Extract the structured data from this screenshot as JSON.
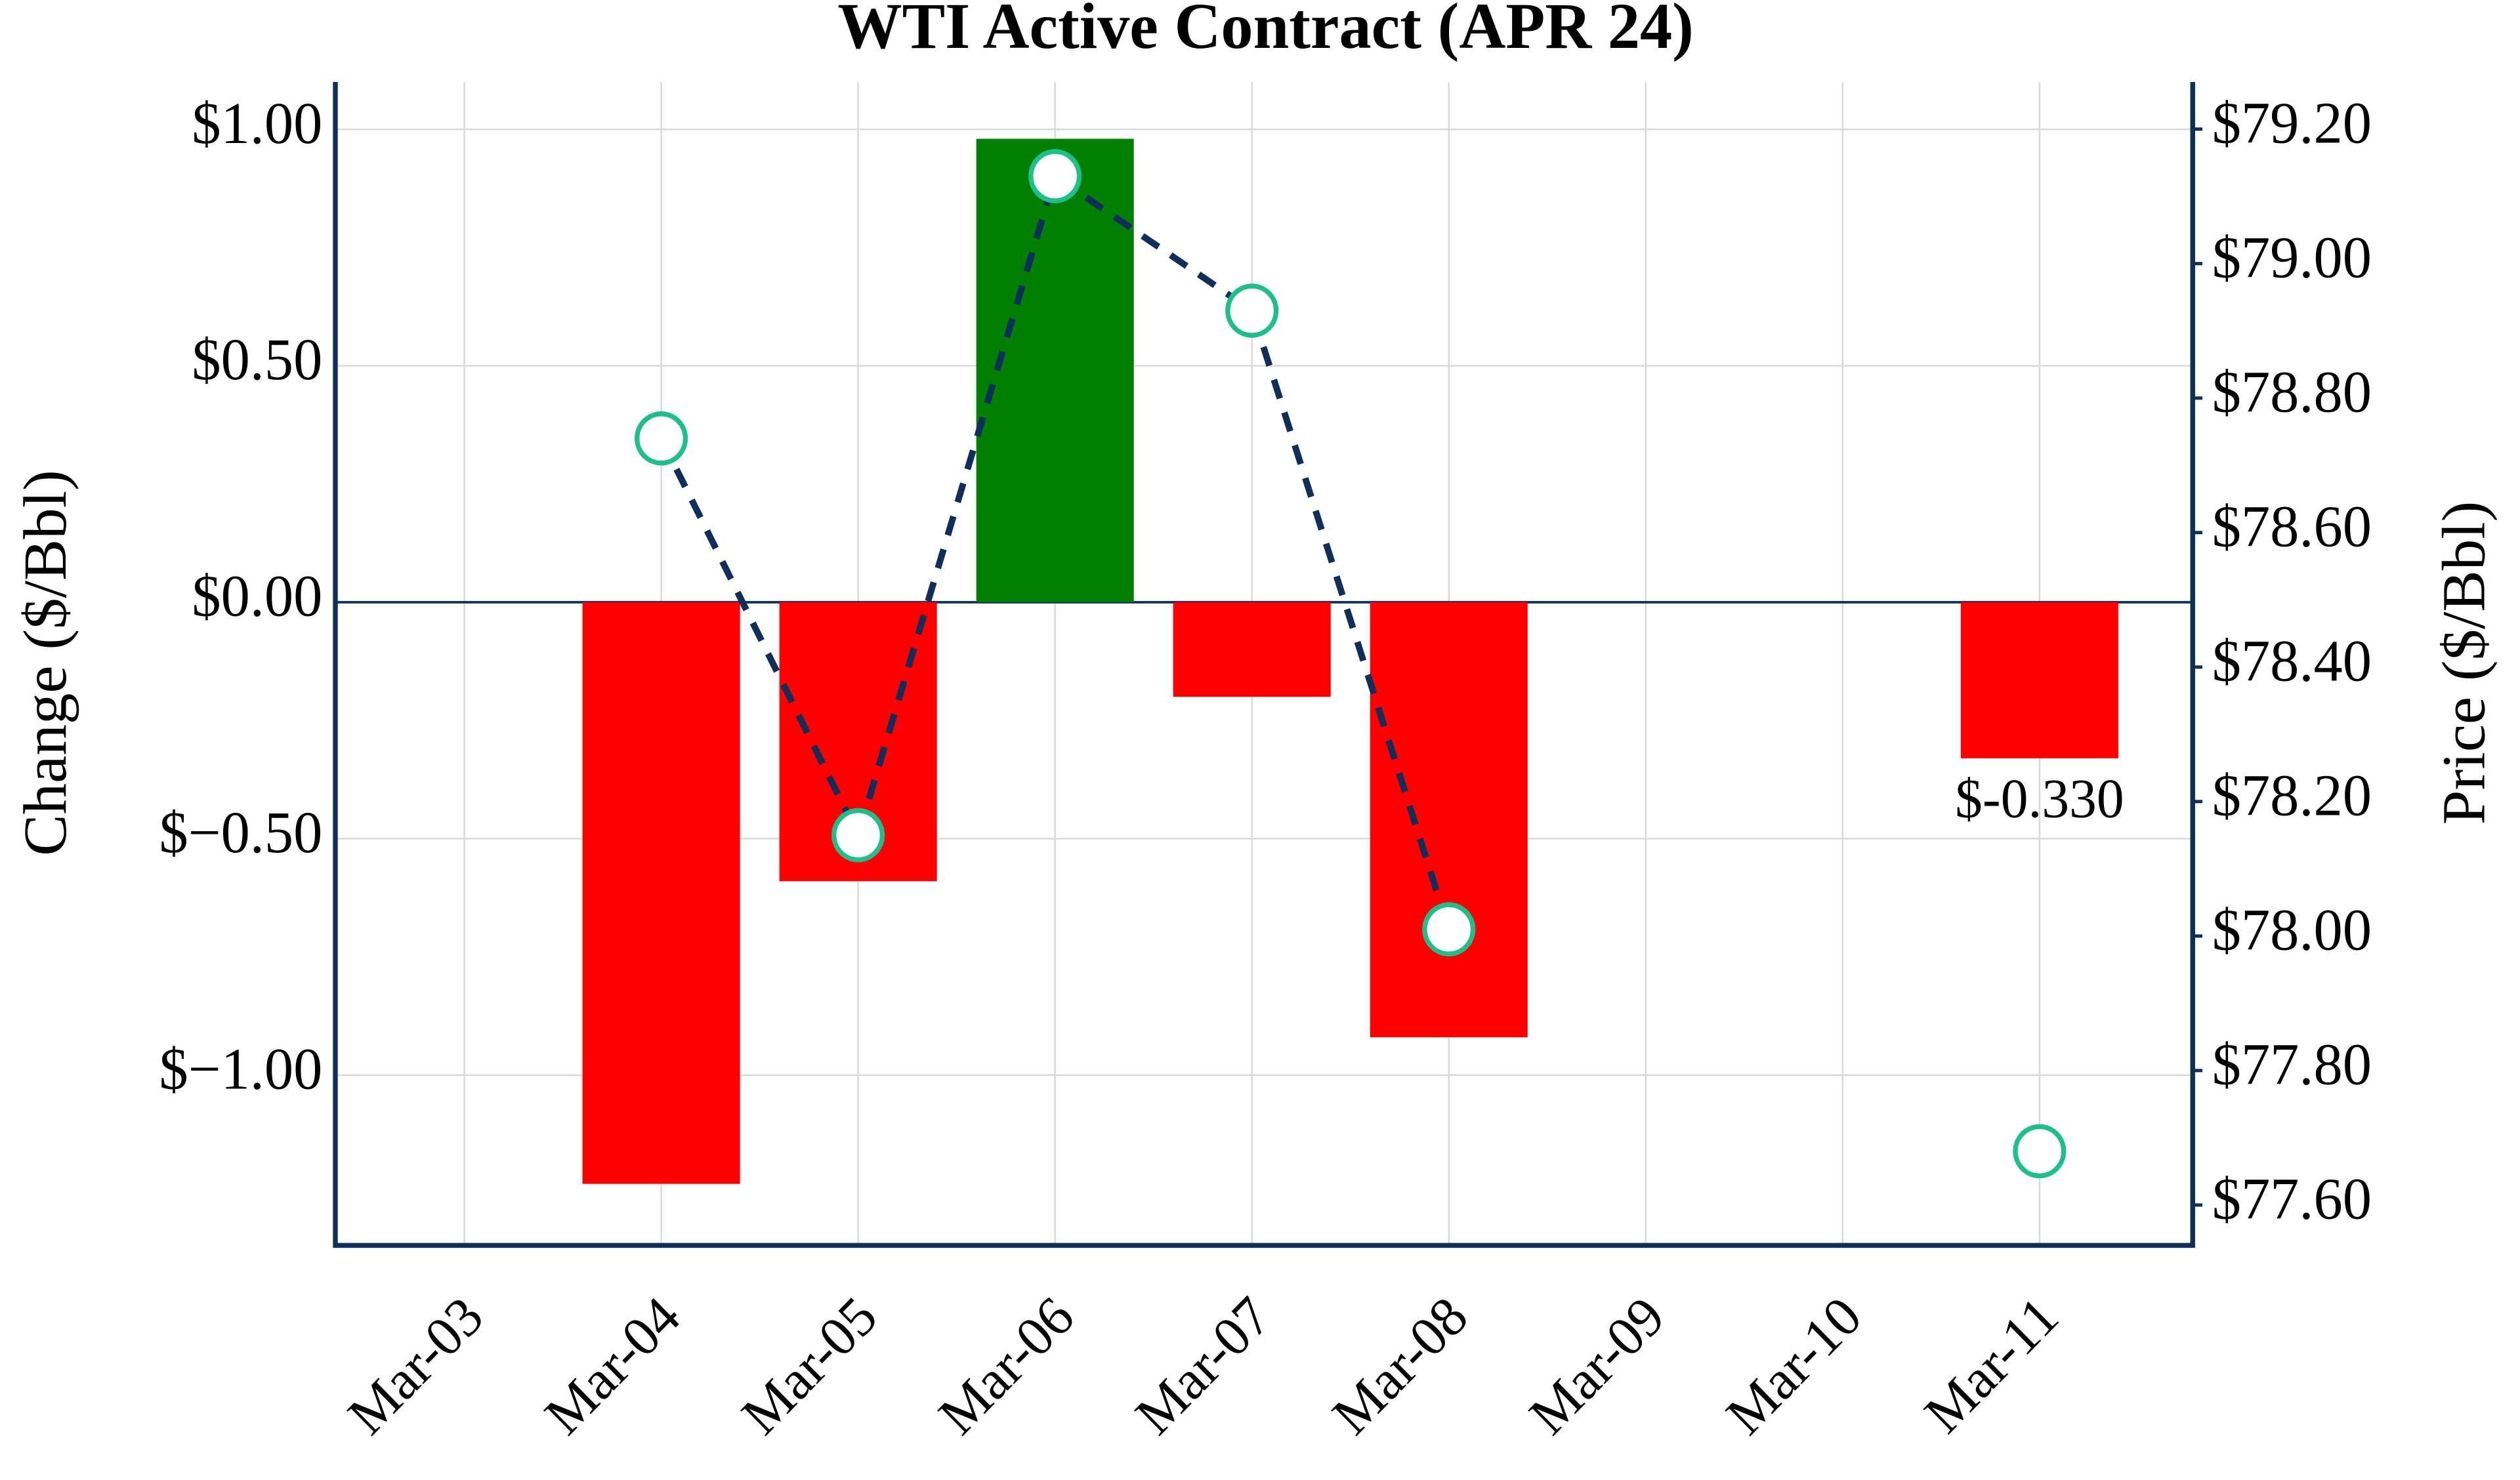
{
  "chart_data": {
    "type": "bar",
    "title": "WTI Active Contract (APR 24)",
    "y_label": "Change ($/Bbl)",
    "y2_label": "Price ($/Bbl)",
    "categories": [
      "Mar-03",
      "Mar-04",
      "Mar-05",
      "Mar-06",
      "Mar-07",
      "Mar-08",
      "Mar-09",
      "Mar-10",
      "Mar-11"
    ],
    "series": [
      {
        "type": "bar",
        "values": [
          null,
          -1.23,
          -0.59,
          0.98,
          -0.2,
          -0.92,
          null,
          null,
          -0.33
        ],
        "colors": [
          "#ff0000",
          "#ff0000",
          "#ff0000",
          "#008000",
          "#ff0000",
          "#ff0000",
          "#ff0000",
          "#ff0000",
          "#ff0000"
        ],
        "value_labels": [
          null,
          null,
          null,
          null,
          null,
          null,
          null,
          null,
          "$-0.330"
        ]
      },
      {
        "type": "line",
        "axis": "y2",
        "values": [
          null,
          78.74,
          78.15,
          79.13,
          78.93,
          78.01,
          null,
          null,
          77.68
        ],
        "color": "#0e2f5a",
        "marker_color": "#1dbf8a"
      }
    ],
    "ylim": [
      -1.36,
      1.1
    ],
    "yticks": [
      {
        "value": 1,
        "label": "$1.00"
      },
      {
        "value": 0.5,
        "label": "$0.50"
      },
      {
        "value": 0,
        "label": "$0.00"
      },
      {
        "value": -0.5,
        "label": "$−0.50"
      },
      {
        "value": -1,
        "label": "$−1.00"
      }
    ],
    "y2lim": [
      77.54,
      79.27
    ],
    "y2ticks": [
      {
        "value": 79.2,
        "label": "$79.20"
      },
      {
        "value": 79,
        "label": "$79.00"
      },
      {
        "value": 78.8,
        "label": "$78.80"
      },
      {
        "value": 78.6,
        "label": "$78.60"
      },
      {
        "value": 78.4,
        "label": "$78.40"
      },
      {
        "value": 78.2,
        "label": "$78.20"
      },
      {
        "value": 78,
        "label": "$78.00"
      },
      {
        "value": 77.8,
        "label": "$77.80"
      },
      {
        "value": 77.6,
        "label": "$77.60"
      }
    ],
    "grid": true
  }
}
